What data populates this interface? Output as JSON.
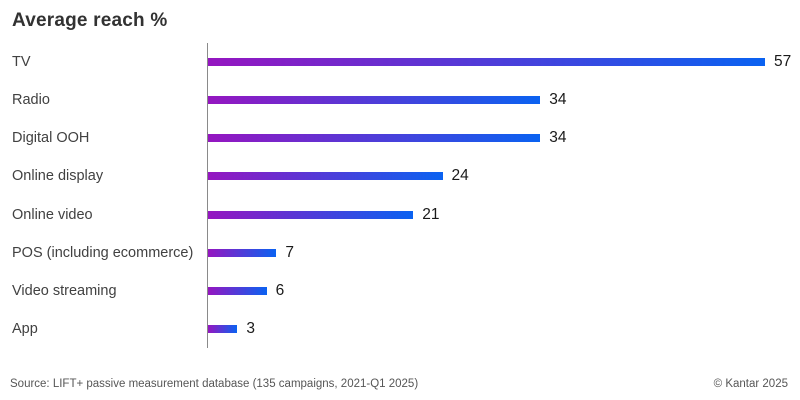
{
  "title": "Average reach %",
  "chart_data": {
    "type": "bar",
    "orientation": "horizontal",
    "title": "Average reach %",
    "categories": [
      "TV",
      "Radio",
      "Digital OOH",
      "Online display",
      "Online video",
      "POS (including ecommerce)",
      "Video streaming",
      "App"
    ],
    "values": [
      57,
      34,
      34,
      24,
      21,
      7,
      6,
      3
    ],
    "xlabel": "",
    "ylabel": "",
    "xlim": [
      0,
      60
    ],
    "grid": false,
    "legend": false,
    "value_labels": true,
    "bar_gradient_start": "#9516C0",
    "bar_gradient_end": "#0A62F1",
    "axis_color": "#8A8A8A"
  },
  "footer": {
    "source": "Source: LIFT+ passive measurement database (135 campaigns, 2021-Q1 2025)",
    "copyright": "© Kantar 2025"
  }
}
